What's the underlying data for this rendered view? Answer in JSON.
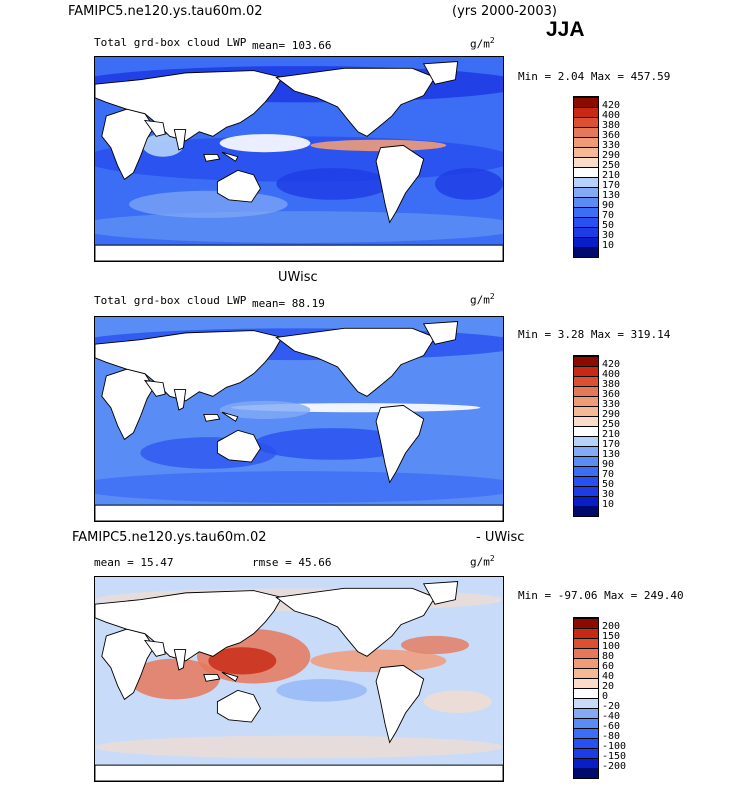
{
  "header": {
    "case_name": "FAMIPC5.ne120.ys.tau60m.02",
    "years": "(yrs 2000-2003)",
    "season": "JJA"
  },
  "panels": [
    {
      "id": "model",
      "title": "FAMIPC5.ne120.ys.tau60m.02",
      "variable": "Total grd-box cloud LWP",
      "mean_label": "mean=  103.66",
      "units": "g/m",
      "units_exp": "2",
      "minmax": "Min =   2.04 Max = 457.59"
    },
    {
      "id": "obs",
      "title": "UWisc",
      "variable": "Total grd-box cloud LWP",
      "mean_label": "mean=  88.19",
      "units": "g/m",
      "units_exp": "2",
      "minmax": "Min =   3.28 Max = 319.14"
    },
    {
      "id": "diff",
      "title_left": "FAMIPC5.ne120.ys.tau60m.02",
      "title_right": "- UWisc",
      "mean_label": "mean =   15.47",
      "rmse_label": "rmse =   45.66",
      "units": "g/m",
      "units_exp": "2",
      "minmax": "Min = -97.06 Max = 249.40"
    }
  ],
  "chart_data": [
    {
      "type": "heatmap",
      "title": "FAMIPC5.ne120.ys.tau60m.02 Total grd-box cloud LWP (JJA)",
      "units": "g/m2",
      "min": 2.04,
      "max": 457.59,
      "mean": 103.66,
      "levels": [
        10,
        30,
        50,
        70,
        90,
        130,
        170,
        210,
        250,
        290,
        330,
        360,
        380,
        400,
        420
      ],
      "colors": [
        "#000a6e",
        "#0a1ec8",
        "#1e3ce6",
        "#2850f0",
        "#3c6ef5",
        "#5a8cf5",
        "#82aaf5",
        "#b4d2fa",
        "#ffffff",
        "#fadcc8",
        "#f5b996",
        "#f09b78",
        "#e6785a",
        "#dc5032",
        "#c82814",
        "#8c0a00"
      ]
    },
    {
      "type": "heatmap",
      "title": "UWisc Total grd-box cloud LWP (JJA)",
      "units": "g/m2",
      "min": 3.28,
      "max": 319.14,
      "mean": 88.19,
      "levels": [
        10,
        30,
        50,
        70,
        90,
        130,
        170,
        210,
        250,
        290,
        330,
        360,
        380,
        400,
        420
      ],
      "colors": [
        "#000a6e",
        "#0a1ec8",
        "#1e3ce6",
        "#2850f0",
        "#3c6ef5",
        "#5a8cf5",
        "#82aaf5",
        "#b4d2fa",
        "#ffffff",
        "#fadcc8",
        "#f5b996",
        "#f09b78",
        "#e6785a",
        "#dc5032",
        "#c82814",
        "#8c0a00"
      ]
    },
    {
      "type": "heatmap",
      "title": "FAMIPC5.ne120.ys.tau60m.02 - UWisc (JJA)",
      "units": "g/m2",
      "min": -97.06,
      "max": 249.4,
      "mean": 15.47,
      "rmse": 45.66,
      "levels": [
        -200,
        -150,
        -100,
        -80,
        -60,
        -40,
        -20,
        0,
        20,
        40,
        60,
        80,
        100,
        150,
        200
      ],
      "colors": [
        "#000a6e",
        "#0a1ec8",
        "#1e3ce6",
        "#2850f0",
        "#3c6ef5",
        "#5a8cf5",
        "#82aaf5",
        "#c8dcfa",
        "#ffffff",
        "#fadcc8",
        "#f5b996",
        "#f09b78",
        "#e6785a",
        "#dc5032",
        "#c82814",
        "#8c0a00"
      ]
    }
  ]
}
